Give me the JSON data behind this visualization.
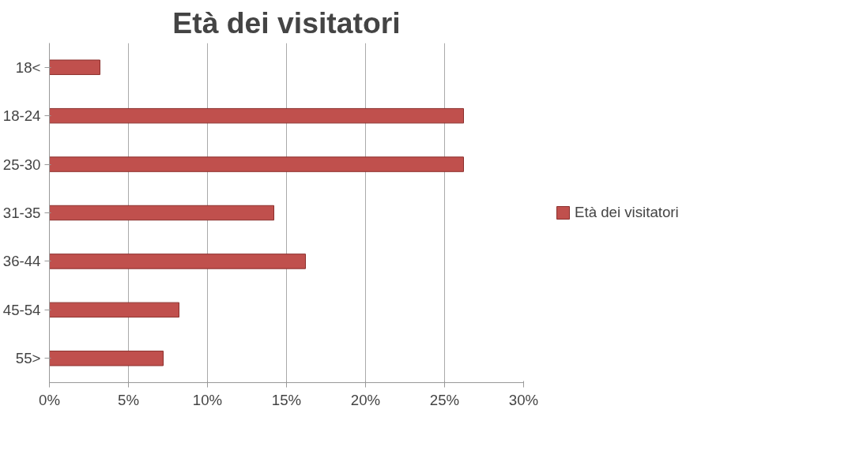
{
  "chart_data": {
    "type": "bar",
    "orientation": "horizontal",
    "title": "Età dei visitatori",
    "categories": [
      "18<",
      "18-24",
      "25-30",
      "31-35",
      "36-44",
      "45-54",
      "55>"
    ],
    "series": [
      {
        "name": "Età dei visitatori",
        "color": "#c0504d",
        "values": [
          3.2,
          26.2,
          26.2,
          14.2,
          16.2,
          8.2,
          7.2
        ]
      }
    ],
    "xlim": [
      0,
      30
    ],
    "xticks": [
      {
        "value": 0,
        "label": "0%"
      },
      {
        "value": 5,
        "label": "5%"
      },
      {
        "value": 10,
        "label": "10%"
      },
      {
        "value": 15,
        "label": "15%"
      },
      {
        "value": 20,
        "label": "20%"
      },
      {
        "value": 25,
        "label": "25%"
      },
      {
        "value": 30,
        "label": "30%"
      }
    ],
    "grid": "x",
    "legend": "right"
  }
}
